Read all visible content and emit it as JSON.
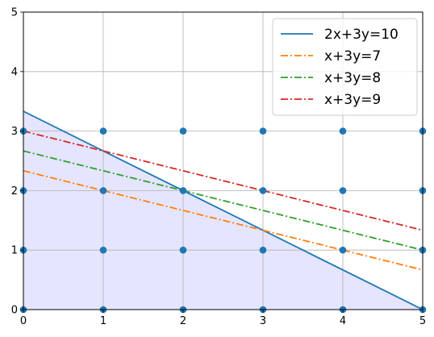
{
  "chart_data": {
    "type": "line",
    "xlim": [
      0,
      5
    ],
    "ylim": [
      0,
      5
    ],
    "grid": true,
    "legend_position": "top-right",
    "xticks": [
      "0",
      "1",
      "2",
      "3",
      "4",
      "5"
    ],
    "yticks": [
      "0",
      "1",
      "2",
      "3",
      "4",
      "5"
    ],
    "feasible_region": {
      "color": "#e5e5ff",
      "points": [
        [
          0,
          0
        ],
        [
          0,
          3.3333
        ],
        [
          5,
          0
        ]
      ]
    },
    "scatter": {
      "color": "#1f77b4",
      "x": [
        0,
        1,
        2,
        3,
        4,
        5,
        0,
        1,
        2,
        3,
        4,
        5,
        0,
        1,
        2,
        3,
        4,
        5,
        0,
        1,
        2,
        3,
        4,
        5
      ],
      "y": [
        0,
        0,
        0,
        0,
        0,
        0,
        1,
        1,
        1,
        1,
        1,
        1,
        2,
        2,
        2,
        2,
        2,
        2,
        3,
        3,
        3,
        3,
        3,
        3
      ]
    },
    "series": [
      {
        "name": "2x+3y=10",
        "color": "#1f77b4",
        "dash": "solid",
        "x": [
          0,
          5
        ],
        "y": [
          3.3333,
          0
        ]
      },
      {
        "name": "x+3y=7",
        "color": "#ff7f0e",
        "dash": "dashdot",
        "x": [
          0,
          5
        ],
        "y": [
          2.3333,
          0.6667
        ]
      },
      {
        "name": "x+3y=8",
        "color": "#2ca02c",
        "dash": "dashdot",
        "x": [
          0,
          5
        ],
        "y": [
          2.6667,
          1.0
        ]
      },
      {
        "name": "x+3y=9",
        "color": "#d62728",
        "dash": "dashdot",
        "x": [
          0,
          5
        ],
        "y": [
          3.0,
          1.3333
        ]
      }
    ]
  }
}
